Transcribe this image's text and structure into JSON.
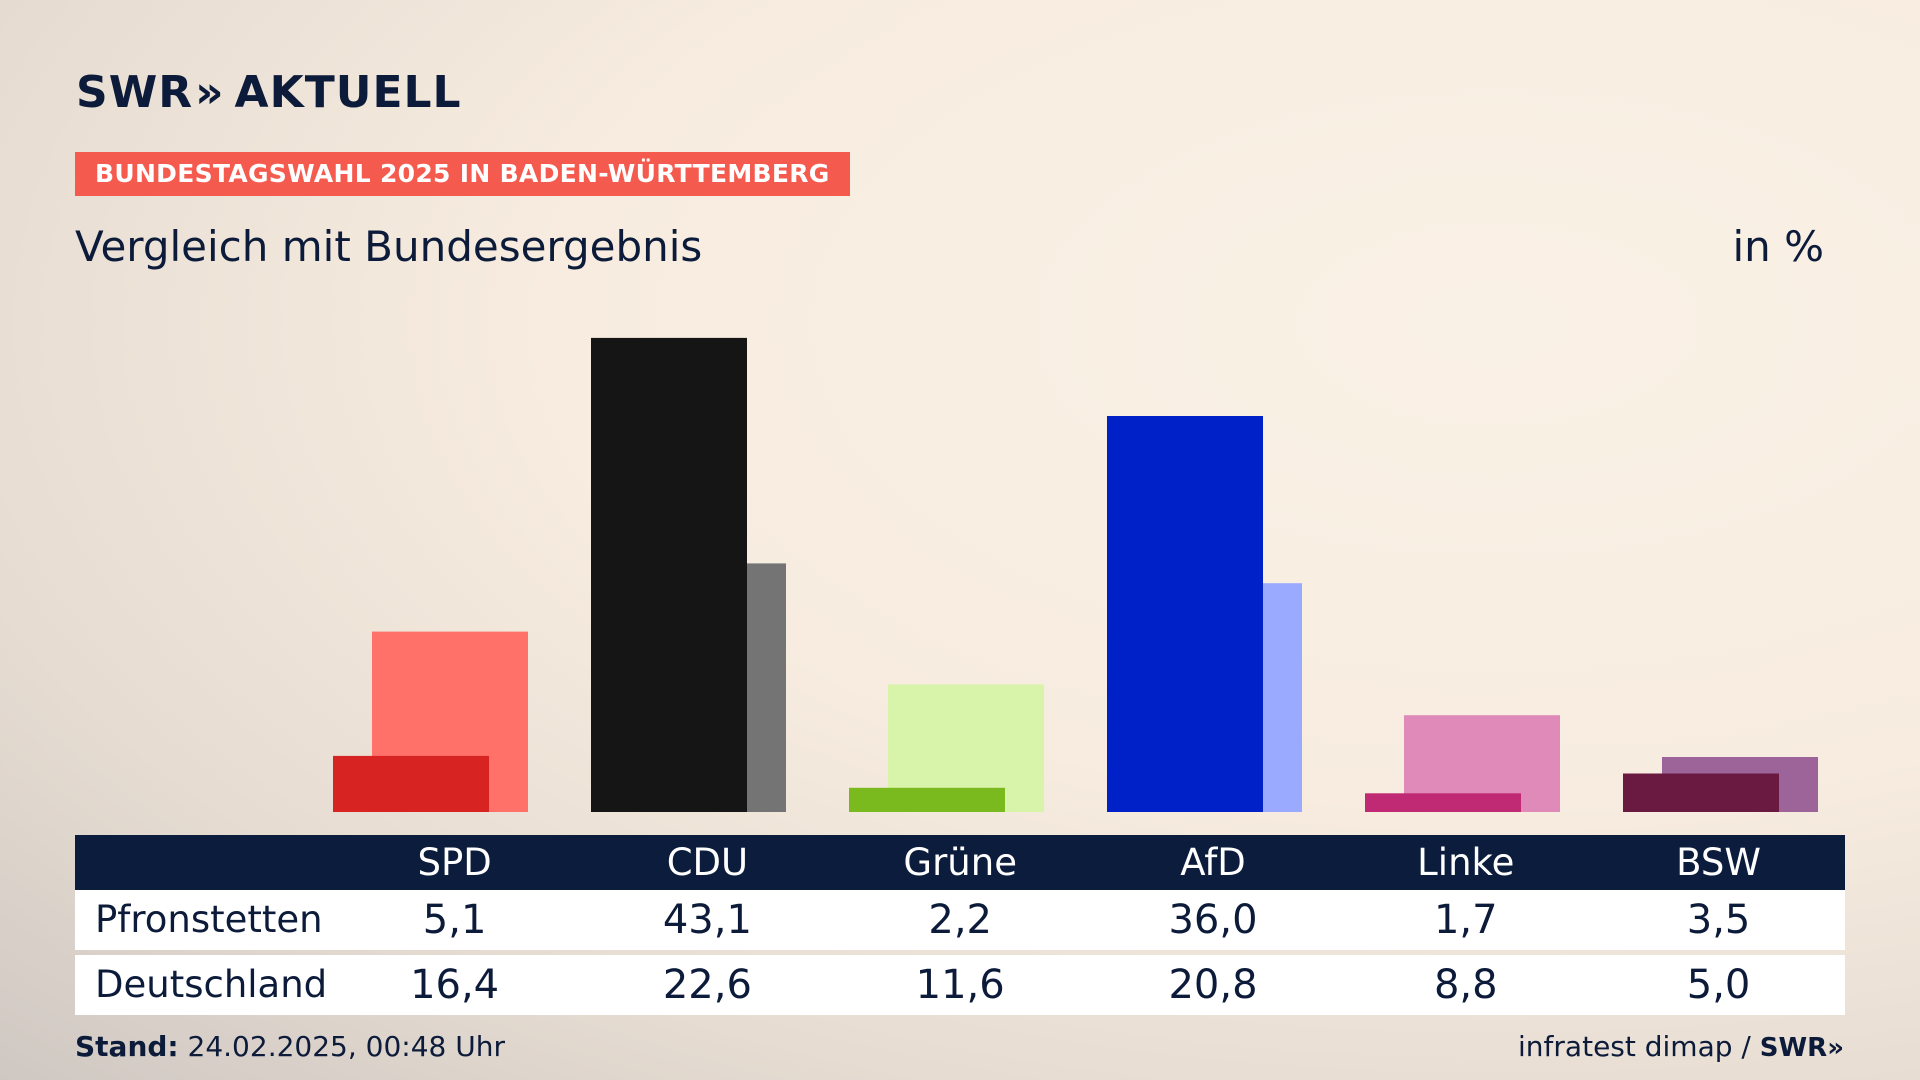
{
  "header": {
    "logo_text": "SWR",
    "logo_chevrons": "»",
    "logo_suffix": "AKTUELL",
    "banner": "BUNDESTAGSWAHL 2025 IN BADEN-WÜRTTEMBERG",
    "title": "Vergleich mit Bundesergebnis",
    "unit": "in %"
  },
  "chart_data": {
    "type": "bar",
    "categories": [
      "SPD",
      "CDU",
      "Grüne",
      "AfD",
      "Linke",
      "BSW"
    ],
    "series": [
      {
        "name": "Pfronstetten",
        "values": [
          5.1,
          43.1,
          2.2,
          36.0,
          1.7,
          3.5
        ],
        "labels": [
          "5,1",
          "43,1",
          "2,2",
          "36,0",
          "1,7",
          "3,5"
        ]
      },
      {
        "name": "Deutschland",
        "values": [
          16.4,
          22.6,
          11.6,
          20.8,
          8.8,
          5.0
        ],
        "labels": [
          "16,4",
          "22,6",
          "11,6",
          "20,8",
          "8,8",
          "5,0"
        ]
      }
    ],
    "colors_local": [
      "#d72322",
      "#151515",
      "#7aba1f",
      "#0020c8",
      "#c02a75",
      "#6a1a40"
    ],
    "colors_national": [
      "#ff7169",
      "#747474",
      "#d8f4aa",
      "#9aabff",
      "#df8ab8",
      "#9c6498"
    ],
    "ylim": [
      0,
      45
    ],
    "grid": false
  },
  "footer": {
    "stand_label": "Stand:",
    "stand_value": "24.02.2025, 00:48 Uhr",
    "source": "infratest dimap /",
    "source_logo": "SWR»"
  }
}
